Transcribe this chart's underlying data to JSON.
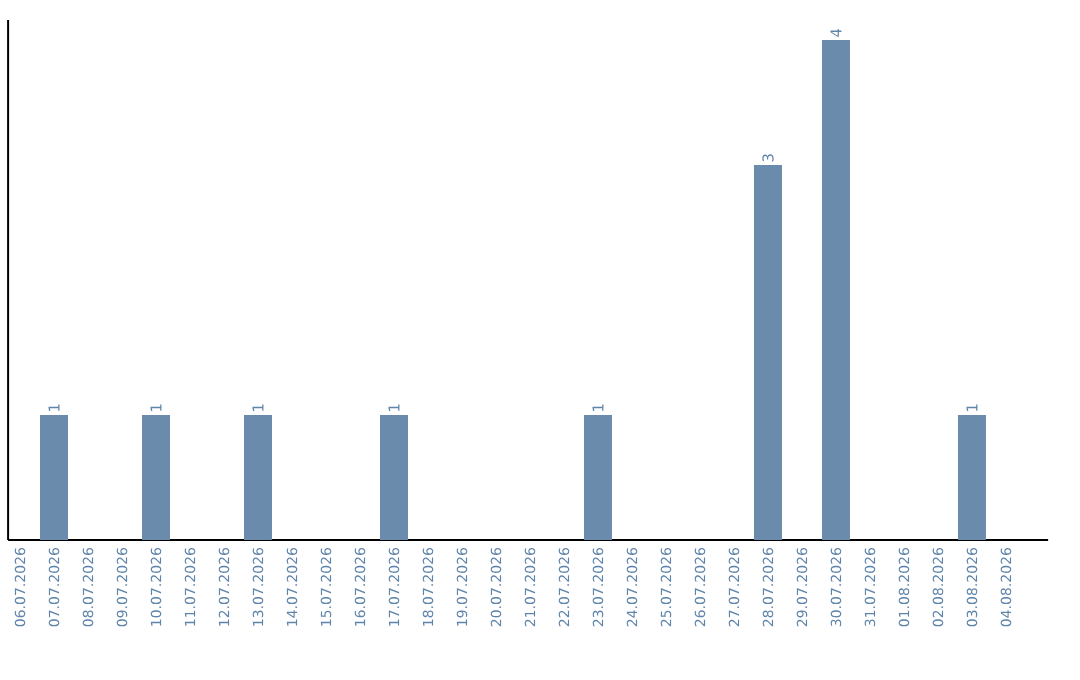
{
  "chart_data": {
    "type": "bar",
    "categories": [
      "06.07.2026",
      "07.07.2026",
      "08.07.2026",
      "09.07.2026",
      "10.07.2026",
      "11.07.2026",
      "12.07.2026",
      "13.07.2026",
      "14.07.2026",
      "15.07.2026",
      "16.07.2026",
      "17.07.2026",
      "18.07.2026",
      "19.07.2026",
      "20.07.2026",
      "21.07.2026",
      "22.07.2026",
      "23.07.2026",
      "24.07.2026",
      "25.07.2026",
      "26.07.2026",
      "27.07.2026",
      "28.07.2026",
      "29.07.2026",
      "30.07.2026",
      "31.07.2026",
      "01.08.2026",
      "02.08.2026",
      "03.08.2026",
      "04.08.2026"
    ],
    "values": [
      0,
      1,
      0,
      0,
      1,
      0,
      0,
      1,
      0,
      0,
      0,
      1,
      0,
      0,
      0,
      0,
      0,
      1,
      0,
      0,
      0,
      0,
      3,
      0,
      4,
      0,
      0,
      0,
      1,
      0
    ],
    "value_labels": [
      null,
      "1",
      null,
      null,
      "1",
      null,
      null,
      "1",
      null,
      null,
      null,
      "1",
      null,
      null,
      null,
      null,
      null,
      "1",
      null,
      null,
      null,
      null,
      "3",
      null,
      "4",
      null,
      null,
      null,
      "1",
      null
    ],
    "color": "#6a8bab",
    "ylim": [
      0,
      4.16
    ],
    "tick_labels": "x",
    "grid": false
  }
}
